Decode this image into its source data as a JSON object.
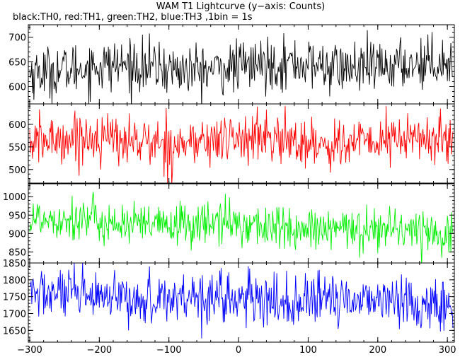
{
  "chart_data": {
    "type": "line",
    "title": "WAM T1 Lightcurve (y−axis: Counts)",
    "subtitle": "black:TH0, red:TH1, green:TH2, blue:TH3 ,1bin = 1s",
    "xlabel": "",
    "ylabel": "",
    "grid": false,
    "xlim": [
      -302,
      310
    ],
    "x_ticks": [
      -300,
      -200,
      -100,
      0,
      100,
      200,
      300
    ],
    "x_tick_labels": [
      "−300",
      "−200",
      "−100",
      "0",
      "100",
      "200",
      "300"
    ],
    "bin_seconds": 1,
    "panels": [
      {
        "name": "TH0",
        "color": "#000000",
        "ylim": [
          565,
          725
        ],
        "y_ticks": [
          600,
          650,
          700
        ],
        "mean": 640,
        "spread": 26,
        "trend": 10
      },
      {
        "name": "TH1",
        "color": "#ff0000",
        "ylim": [
          470,
          645
        ],
        "y_ticks": [
          500,
          550,
          600
        ],
        "mean": 563,
        "spread": 28,
        "trend": -3
      },
      {
        "name": "TH2",
        "color": "#00ee00",
        "ylim": [
          820,
          1035
        ],
        "y_ticks": [
          850,
          900,
          950,
          1000
        ],
        "mean": 920,
        "spread": 30,
        "trend": -35
      },
      {
        "name": "TH3",
        "color": "#0000ff",
        "ylim": [
          1615,
          1850
        ],
        "y_ticks": [
          1650,
          1700,
          1750,
          1800,
          1850
        ],
        "mean": 1742,
        "spread": 38,
        "trend": -20
      }
    ]
  }
}
